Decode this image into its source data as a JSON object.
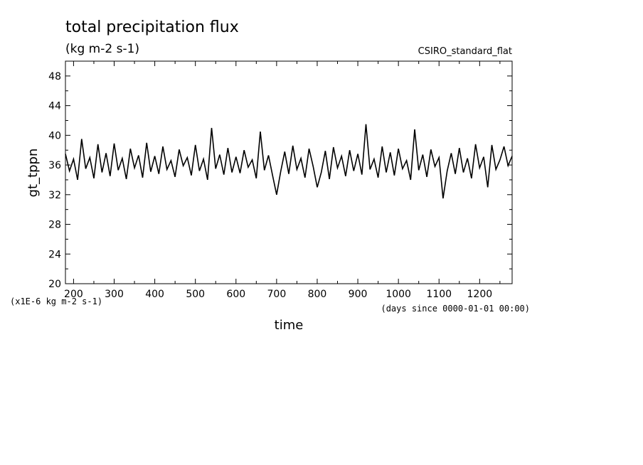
{
  "chart_data": {
    "type": "line",
    "title": "total precipitation flux",
    "subtitle": "(kg m-2 s-1)",
    "dataset_label": "CSIRO_standard_flat",
    "xlabel": "time",
    "x_units": "(days since 0000-01-01 00:00)",
    "ylabel": "gt_tppn",
    "y_units": "(x1E-6 kg m-2 s-1)",
    "xlim": [
      180,
      1280
    ],
    "ylim": [
      20,
      50
    ],
    "x_ticks": [
      200,
      300,
      400,
      500,
      600,
      700,
      800,
      900,
      1000,
      1100,
      1200
    ],
    "y_ticks": [
      20,
      24,
      28,
      32,
      36,
      40,
      44,
      48
    ],
    "grid": false,
    "series": [
      {
        "color": "#000000",
        "x": [
          180,
          190,
          200,
          210,
          220,
          230,
          240,
          250,
          260,
          270,
          280,
          290,
          300,
          310,
          320,
          330,
          340,
          350,
          360,
          370,
          380,
          390,
          400,
          410,
          420,
          430,
          440,
          450,
          460,
          470,
          480,
          490,
          500,
          510,
          520,
          530,
          540,
          550,
          560,
          570,
          580,
          590,
          600,
          610,
          620,
          630,
          640,
          650,
          660,
          670,
          680,
          690,
          700,
          710,
          720,
          730,
          740,
          750,
          760,
          770,
          780,
          790,
          800,
          810,
          820,
          830,
          840,
          850,
          860,
          870,
          880,
          890,
          900,
          910,
          920,
          930,
          940,
          950,
          960,
          970,
          980,
          990,
          1000,
          1010,
          1020,
          1030,
          1040,
          1050,
          1060,
          1070,
          1080,
          1090,
          1100,
          1110,
          1120,
          1130,
          1140,
          1150,
          1160,
          1170,
          1180,
          1190,
          1200,
          1210,
          1220,
          1230,
          1240,
          1250,
          1260,
          1270,
          1280
        ],
        "y": [
          37.5,
          35.2,
          36.8,
          34.0,
          39.5,
          35.5,
          37.0,
          34.2,
          38.8,
          35.0,
          37.6,
          34.5,
          38.9,
          35.3,
          36.9,
          34.1,
          38.2,
          35.6,
          37.3,
          34.3,
          39.0,
          35.1,
          37.2,
          34.8,
          38.5,
          35.4,
          36.6,
          34.4,
          38.1,
          35.9,
          37.0,
          34.6,
          38.7,
          35.2,
          36.8,
          34.0,
          41.0,
          35.5,
          37.4,
          34.7,
          38.3,
          35.0,
          37.1,
          34.9,
          38.0,
          35.7,
          36.7,
          34.2,
          40.5,
          35.3,
          37.3,
          34.6,
          32.0,
          35.1,
          37.8,
          34.8,
          38.6,
          35.4,
          36.9,
          34.3,
          38.2,
          35.8,
          33.0,
          35.0,
          37.9,
          34.1,
          38.4,
          35.6,
          37.2,
          34.5,
          38.0,
          35.2,
          37.5,
          34.7,
          41.5,
          35.4,
          36.8,
          34.3,
          38.5,
          35.0,
          37.7,
          34.6,
          38.2,
          35.5,
          36.6,
          34.0,
          40.8,
          35.3,
          37.4,
          34.4,
          38.1,
          35.8,
          37.0,
          31.5,
          35.2,
          37.6,
          34.8,
          38.3,
          35.0,
          36.9,
          34.2,
          38.8,
          35.6,
          37.1,
          33.0,
          38.7,
          35.4,
          36.7,
          38.5,
          35.9,
          37.2
        ]
      }
    ]
  }
}
